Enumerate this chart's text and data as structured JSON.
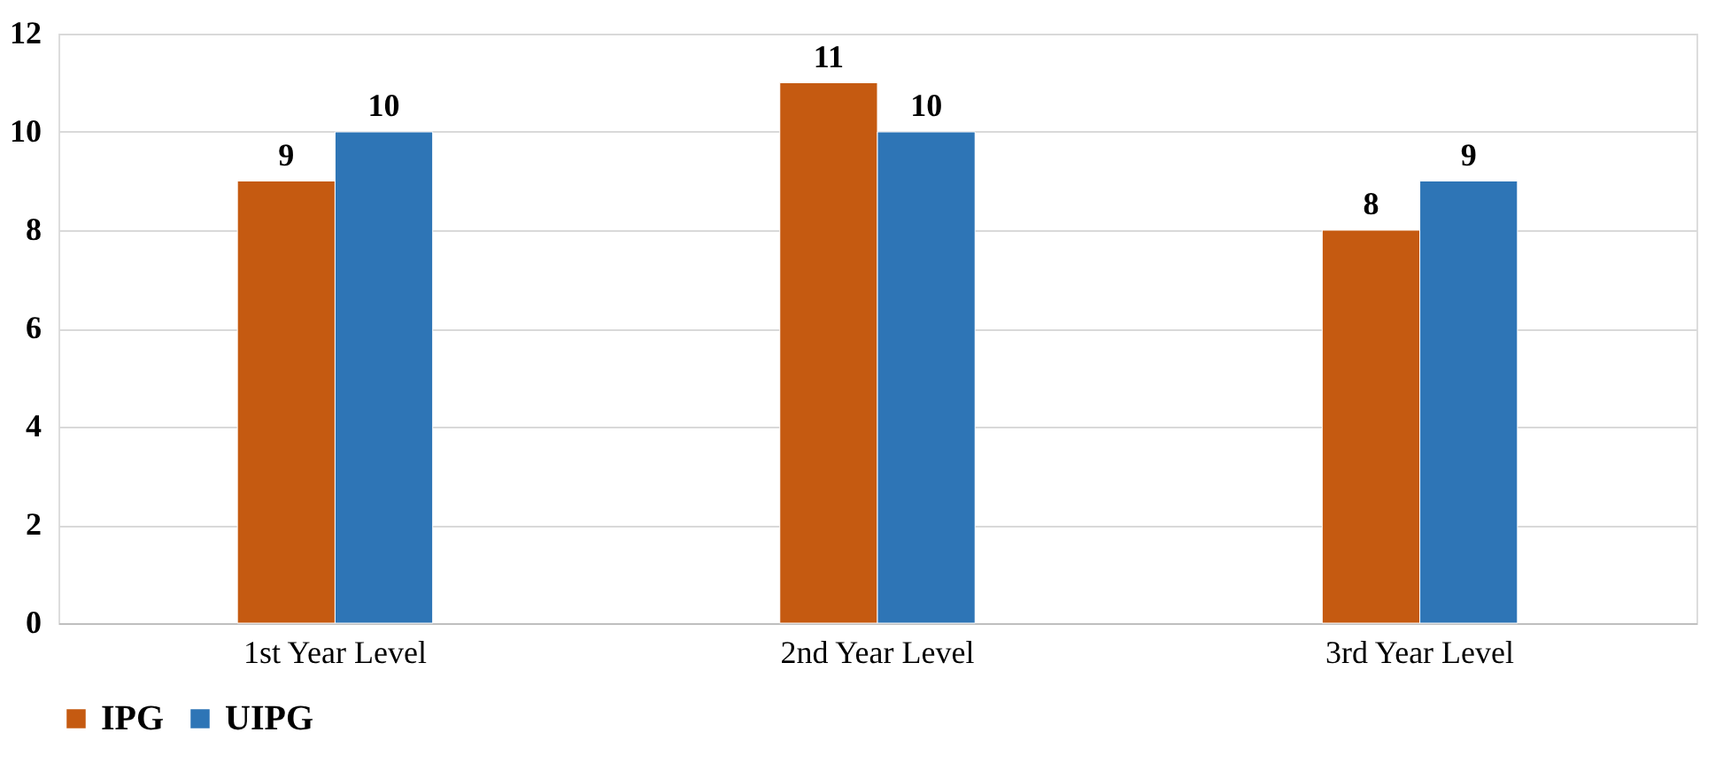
{
  "chart_data": {
    "type": "bar",
    "categories": [
      "1st Year Level",
      "2nd Year Level",
      "3rd Year Level"
    ],
    "series": [
      {
        "name": "IPG",
        "color": "#c55a11",
        "values": [
          9,
          11,
          8
        ]
      },
      {
        "name": "UIPG",
        "color": "#2e75b6",
        "values": [
          10,
          10,
          9
        ]
      }
    ],
    "ylim": [
      0,
      12
    ],
    "yticks": [
      0,
      2,
      4,
      6,
      8,
      10,
      12
    ],
    "grid": "y",
    "legend": "bottom",
    "data_labels": true
  }
}
